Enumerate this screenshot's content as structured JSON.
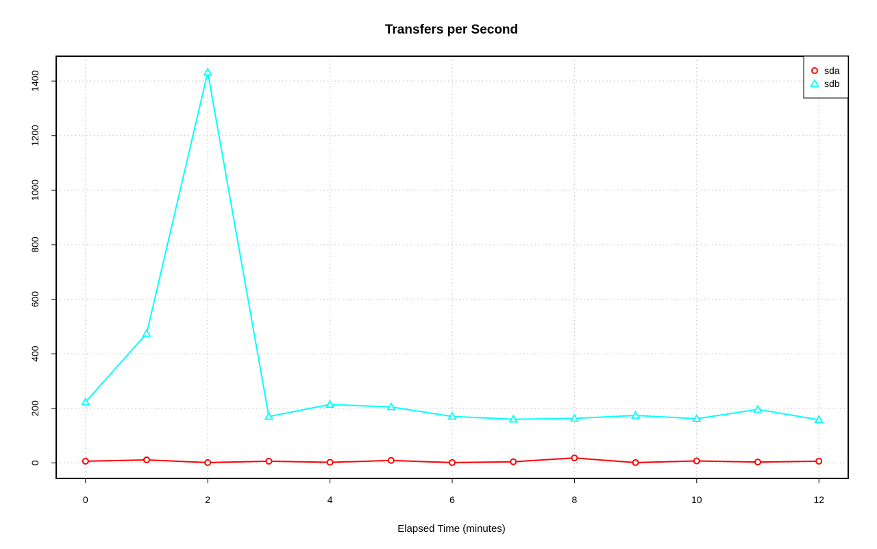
{
  "chart_data": {
    "type": "line",
    "title": "Transfers per Second",
    "xlabel": "Elapsed Time (minutes)",
    "ylabel": "",
    "x": [
      0,
      1,
      2,
      3,
      4,
      5,
      6,
      7,
      8,
      9,
      10,
      11,
      12
    ],
    "xlim": [
      -0.48,
      12.48
    ],
    "ylim": [
      -57,
      1491
    ],
    "xticks": [
      0,
      2,
      4,
      6,
      8,
      10,
      12
    ],
    "yticks": [
      0,
      200,
      400,
      600,
      800,
      1000,
      1200,
      1400
    ],
    "grid": true,
    "legend_position": "top-right",
    "series": [
      {
        "name": "sda",
        "color": "#ff0000",
        "marker": "circle",
        "values": [
          6,
          11,
          1,
          6,
          2,
          9,
          1,
          4,
          18,
          1,
          7,
          3,
          6
        ]
      },
      {
        "name": "sdb",
        "color": "#00ffff",
        "marker": "triangle",
        "values": [
          223,
          474,
          1432,
          170,
          214,
          205,
          170,
          160,
          163,
          174,
          162,
          196,
          158
        ]
      }
    ]
  }
}
